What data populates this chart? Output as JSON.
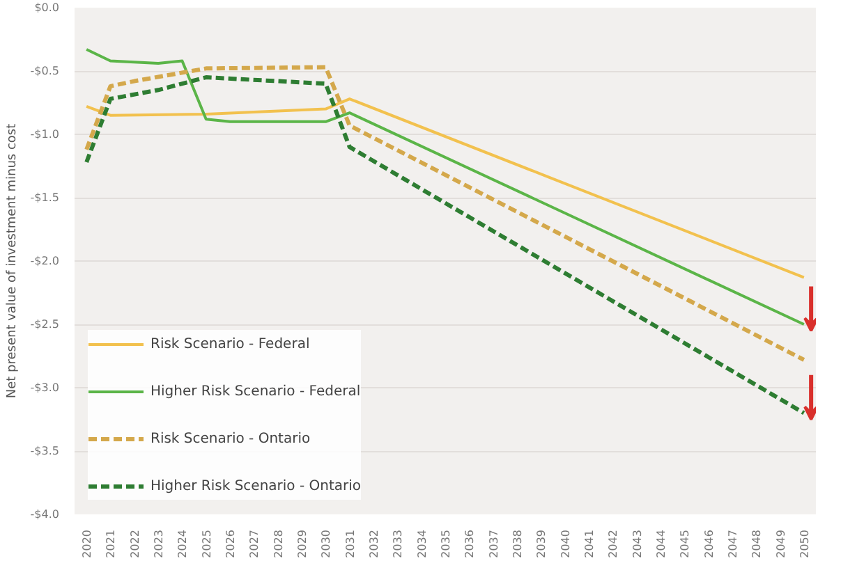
{
  "chart_data": {
    "type": "line",
    "ylabel": "Net present value of investment minus cost",
    "xlim": [
      2019.5,
      2050.5
    ],
    "xticks": [
      2020,
      2021,
      2022,
      2023,
      2024,
      2025,
      2026,
      2027,
      2028,
      2029,
      2030,
      2031,
      2032,
      2033,
      2034,
      2035,
      2036,
      2037,
      2038,
      2039,
      2040,
      2041,
      2042,
      2043,
      2044,
      2045,
      2046,
      2047,
      2048,
      2049,
      2050
    ],
    "ylim": [
      -4.0,
      0.0
    ],
    "yticks": [
      {
        "value": 0.0,
        "label": "$0.0"
      },
      {
        "value": -0.5,
        "label": "-$0.5"
      },
      {
        "value": -1.0,
        "label": "-$1.0"
      },
      {
        "value": -1.5,
        "label": "-$1.5"
      },
      {
        "value": -2.0,
        "label": "-$2.0"
      },
      {
        "value": -2.5,
        "label": "-$2.5"
      },
      {
        "value": -3.0,
        "label": "-$3.0"
      },
      {
        "value": -3.5,
        "label": "-$3.5"
      },
      {
        "value": -4.0,
        "label": "-$4.0"
      }
    ],
    "grid": "y",
    "legend": "bottom left",
    "marker": "none",
    "series": [
      {
        "name": "Risk Scenario - Federal",
        "color": "#f2c14e",
        "line_style": "solid",
        "x": [
          2020,
          2021,
          2025,
          2030,
          2031,
          2050
        ],
        "values": [
          -0.78,
          -0.85,
          -0.84,
          -0.8,
          -0.72,
          -2.13
        ]
      },
      {
        "name": "Higher Risk Scenario - Federal",
        "color": "#5bb548",
        "line_style": "solid",
        "x": [
          2020,
          2021,
          2023,
          2024,
          2025,
          2026,
          2030,
          2031,
          2050
        ],
        "values": [
          -0.33,
          -0.42,
          -0.44,
          -0.42,
          -0.88,
          -0.9,
          -0.9,
          -0.83,
          -2.5
        ]
      },
      {
        "name": "Risk Scenario - Ontario",
        "color": "#d4a84b",
        "line_style": "dashed",
        "x": [
          2020,
          2021,
          2022,
          2025,
          2030,
          2031,
          2050
        ],
        "values": [
          -1.12,
          -0.62,
          -0.58,
          -0.48,
          -0.47,
          -0.93,
          -2.78
        ]
      },
      {
        "name": "Higher Risk Scenario - Ontario",
        "color": "#2e7d32",
        "line_style": "dashed",
        "x": [
          2020,
          2021,
          2023,
          2025,
          2030,
          2031,
          2050
        ],
        "values": [
          -1.22,
          -0.72,
          -0.65,
          -0.55,
          -0.6,
          -1.1,
          -3.2
        ]
      }
    ]
  }
}
